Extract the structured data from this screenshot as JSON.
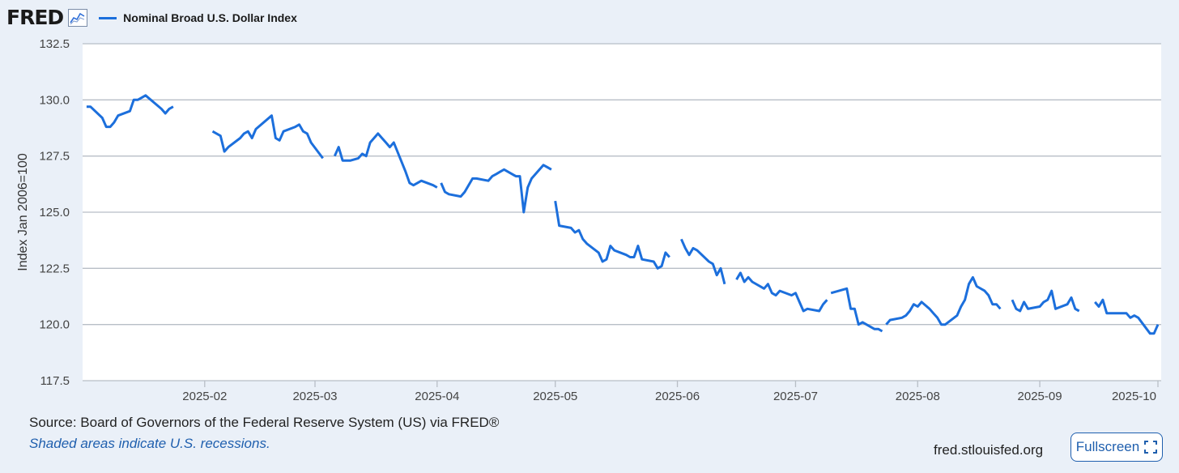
{
  "header": {
    "logo_text": "FRED",
    "logo_icon": "line-chart-icon"
  },
  "chart_data": {
    "type": "line",
    "ylabel": "Index Jan 2006=100",
    "ylim": [
      117.5,
      132.5
    ],
    "yticks": [
      "132.5",
      "130.0",
      "127.5",
      "125.0",
      "122.5",
      "120.0",
      "117.5"
    ],
    "ytick_values": [
      132.5,
      130.0,
      127.5,
      125.0,
      122.5,
      120.0,
      117.5
    ],
    "xlim": [
      "2025-01-01",
      "2025-10-01"
    ],
    "xticks": [
      "2025-02",
      "2025-03",
      "2025-04",
      "2025-05",
      "2025-06",
      "2025-07",
      "2025-08",
      "2025-09",
      "2025-10"
    ],
    "xtick_dates": [
      "2025-02-01",
      "2025-03-01",
      "2025-04-01",
      "2025-05-01",
      "2025-06-01",
      "2025-07-01",
      "2025-08-01",
      "2025-09-01",
      "2025-10-01"
    ],
    "grid": "horizontal",
    "line_color": "#1c6fdc",
    "series": [
      {
        "name": "Nominal Broad U.S. Dollar Index",
        "segments": [
          [
            [
              "2025-01-02",
              129.7
            ],
            [
              "2025-01-03",
              129.7
            ],
            [
              "2025-01-06",
              129.2
            ],
            [
              "2025-01-07",
              128.8
            ],
            [
              "2025-01-08",
              128.8
            ],
            [
              "2025-01-09",
              129.0
            ],
            [
              "2025-01-10",
              129.3
            ],
            [
              "2025-01-13",
              129.5
            ],
            [
              "2025-01-14",
              130.0
            ],
            [
              "2025-01-15",
              130.0
            ],
            [
              "2025-01-16",
              130.1
            ],
            [
              "2025-01-17",
              130.2
            ],
            [
              "2025-01-21",
              129.6
            ],
            [
              "2025-01-22",
              129.4
            ],
            [
              "2025-01-23",
              129.6
            ],
            [
              "2025-01-24",
              129.7
            ]
          ],
          [
            [
              "2025-02-03",
              128.6
            ],
            [
              "2025-02-04",
              128.5
            ],
            [
              "2025-02-05",
              128.4
            ],
            [
              "2025-02-06",
              127.7
            ],
            [
              "2025-02-07",
              127.9
            ],
            [
              "2025-02-10",
              128.3
            ],
            [
              "2025-02-11",
              128.5
            ],
            [
              "2025-02-12",
              128.6
            ],
            [
              "2025-02-13",
              128.3
            ],
            [
              "2025-02-14",
              128.7
            ],
            [
              "2025-02-18",
              129.3
            ],
            [
              "2025-02-19",
              128.3
            ],
            [
              "2025-02-20",
              128.2
            ],
            [
              "2025-02-21",
              128.6
            ],
            [
              "2025-02-24",
              128.8
            ],
            [
              "2025-02-25",
              128.9
            ],
            [
              "2025-02-26",
              128.6
            ],
            [
              "2025-02-27",
              128.5
            ],
            [
              "2025-02-28",
              128.1
            ],
            [
              "2025-03-03",
              127.4
            ]
          ],
          [
            [
              "2025-03-06",
              127.5
            ],
            [
              "2025-03-07",
              127.9
            ],
            [
              "2025-03-08",
              127.3
            ],
            [
              "2025-03-10",
              127.3
            ],
            [
              "2025-03-12",
              127.4
            ],
            [
              "2025-03-13",
              127.6
            ],
            [
              "2025-03-14",
              127.5
            ],
            [
              "2025-03-15",
              128.1
            ],
            [
              "2025-03-17",
              128.5
            ],
            [
              "2025-03-18",
              128.3
            ],
            [
              "2025-03-19",
              128.1
            ],
            [
              "2025-03-20",
              127.9
            ],
            [
              "2025-03-21",
              128.1
            ],
            [
              "2025-03-24",
              126.8
            ],
            [
              "2025-03-25",
              126.3
            ],
            [
              "2025-03-26",
              126.2
            ],
            [
              "2025-03-27",
              126.3
            ],
            [
              "2025-03-28",
              126.4
            ],
            [
              "2025-03-31",
              126.2
            ],
            [
              "2025-04-01",
              126.1
            ]
          ],
          [
            [
              "2025-04-02",
              126.3
            ],
            [
              "2025-04-03",
              125.9
            ],
            [
              "2025-04-04",
              125.8
            ],
            [
              "2025-04-07",
              125.7
            ],
            [
              "2025-04-08",
              125.9
            ],
            [
              "2025-04-09",
              126.2
            ],
            [
              "2025-04-10",
              126.5
            ],
            [
              "2025-04-11",
              126.5
            ],
            [
              "2025-04-14",
              126.4
            ],
            [
              "2025-04-15",
              126.6
            ],
            [
              "2025-04-16",
              126.7
            ],
            [
              "2025-04-17",
              126.8
            ],
            [
              "2025-04-18",
              126.9
            ],
            [
              "2025-04-21",
              126.6
            ],
            [
              "2025-04-22",
              126.6
            ],
            [
              "2025-04-23",
              125.0
            ],
            [
              "2025-04-24",
              126.1
            ],
            [
              "2025-04-25",
              126.5
            ],
            [
              "2025-04-28",
              127.1
            ],
            [
              "2025-04-29",
              127.0
            ],
            [
              "2025-04-30",
              126.9
            ]
          ],
          [
            [
              "2025-05-01",
              125.5
            ],
            [
              "2025-05-02",
              124.4
            ],
            [
              "2025-05-05",
              124.3
            ],
            [
              "2025-05-06",
              124.1
            ],
            [
              "2025-05-07",
              124.2
            ],
            [
              "2025-05-08",
              123.8
            ],
            [
              "2025-05-09",
              123.6
            ],
            [
              "2025-05-12",
              123.2
            ],
            [
              "2025-05-13",
              122.8
            ],
            [
              "2025-05-14",
              122.9
            ],
            [
              "2025-05-15",
              123.5
            ],
            [
              "2025-05-16",
              123.3
            ],
            [
              "2025-05-19",
              123.1
            ],
            [
              "2025-05-20",
              123.0
            ],
            [
              "2025-05-21",
              123.0
            ],
            [
              "2025-05-22",
              123.5
            ],
            [
              "2025-05-23",
              122.9
            ],
            [
              "2025-05-26",
              122.8
            ],
            [
              "2025-05-27",
              122.5
            ],
            [
              "2025-05-28",
              122.6
            ],
            [
              "2025-05-29",
              123.2
            ],
            [
              "2025-05-30",
              123.0
            ]
          ],
          [
            [
              "2025-06-02",
              123.8
            ],
            [
              "2025-06-03",
              123.4
            ],
            [
              "2025-06-04",
              123.1
            ],
            [
              "2025-06-05",
              123.4
            ],
            [
              "2025-06-06",
              123.3
            ],
            [
              "2025-06-09",
              122.8
            ],
            [
              "2025-06-10",
              122.7
            ],
            [
              "2025-06-11",
              122.2
            ],
            [
              "2025-06-12",
              122.5
            ],
            [
              "2025-06-13",
              121.8
            ]
          ],
          [
            [
              "2025-06-16",
              122.0
            ],
            [
              "2025-06-17",
              122.3
            ],
            [
              "2025-06-18",
              121.9
            ],
            [
              "2025-06-19",
              122.1
            ],
            [
              "2025-06-20",
              121.9
            ],
            [
              "2025-06-23",
              121.6
            ],
            [
              "2025-06-24",
              121.8
            ],
            [
              "2025-06-25",
              121.4
            ],
            [
              "2025-06-26",
              121.3
            ],
            [
              "2025-06-27",
              121.5
            ],
            [
              "2025-06-30",
              121.3
            ],
            [
              "2025-07-01",
              121.4
            ],
            [
              "2025-07-02",
              121.0
            ],
            [
              "2025-07-03",
              120.6
            ],
            [
              "2025-07-04",
              120.7
            ],
            [
              "2025-07-07",
              120.6
            ],
            [
              "2025-07-08",
              120.9
            ],
            [
              "2025-07-09",
              121.1
            ]
          ],
          [
            [
              "2025-07-10",
              121.4
            ],
            [
              "2025-07-14",
              121.6
            ],
            [
              "2025-07-15",
              120.7
            ],
            [
              "2025-07-16",
              120.7
            ],
            [
              "2025-07-17",
              120.0
            ],
            [
              "2025-07-18",
              120.1
            ],
            [
              "2025-07-21",
              119.8
            ],
            [
              "2025-07-22",
              119.8
            ],
            [
              "2025-07-23",
              119.7
            ]
          ],
          [
            [
              "2025-07-24",
              120.0
            ],
            [
              "2025-07-25",
              120.2
            ],
            [
              "2025-07-28",
              120.3
            ],
            [
              "2025-07-29",
              120.4
            ],
            [
              "2025-07-30",
              120.6
            ],
            [
              "2025-07-31",
              120.9
            ],
            [
              "2025-08-01",
              120.8
            ],
            [
              "2025-08-02",
              121.0
            ],
            [
              "2025-08-04",
              120.7
            ],
            [
              "2025-08-05",
              120.5
            ],
            [
              "2025-08-06",
              120.3
            ],
            [
              "2025-08-07",
              120.0
            ],
            [
              "2025-08-08",
              120.0
            ],
            [
              "2025-08-11",
              120.4
            ],
            [
              "2025-08-12",
              120.8
            ],
            [
              "2025-08-13",
              121.1
            ],
            [
              "2025-08-14",
              121.8
            ],
            [
              "2025-08-15",
              122.1
            ],
            [
              "2025-08-16",
              121.7
            ],
            [
              "2025-08-18",
              121.5
            ],
            [
              "2025-08-19",
              121.3
            ],
            [
              "2025-08-20",
              120.9
            ],
            [
              "2025-08-21",
              120.9
            ],
            [
              "2025-08-22",
              120.7
            ]
          ],
          [
            [
              "2025-08-25",
              121.1
            ],
            [
              "2025-08-26",
              120.7
            ],
            [
              "2025-08-27",
              120.6
            ],
            [
              "2025-08-28",
              121.0
            ],
            [
              "2025-08-29",
              120.7
            ],
            [
              "2025-09-01",
              120.8
            ],
            [
              "2025-09-02",
              121.0
            ],
            [
              "2025-09-03",
              121.1
            ],
            [
              "2025-09-04",
              121.5
            ],
            [
              "2025-09-05",
              120.7
            ],
            [
              "2025-09-08",
              120.9
            ],
            [
              "2025-09-09",
              121.2
            ],
            [
              "2025-09-10",
              120.7
            ],
            [
              "2025-09-11",
              120.6
            ]
          ],
          [
            [
              "2025-09-15",
              121.0
            ],
            [
              "2025-09-16",
              120.8
            ],
            [
              "2025-09-17",
              121.1
            ],
            [
              "2025-09-18",
              120.5
            ],
            [
              "2025-09-19",
              120.5
            ],
            [
              "2025-09-22",
              120.5
            ],
            [
              "2025-09-23",
              120.5
            ],
            [
              "2025-09-24",
              120.3
            ],
            [
              "2025-09-25",
              120.4
            ],
            [
              "2025-09-26",
              120.3
            ],
            [
              "2025-09-29",
              119.6
            ],
            [
              "2025-09-30",
              119.6
            ],
            [
              "2025-10-01",
              120.0
            ]
          ]
        ]
      }
    ]
  },
  "footer": {
    "source": "Source: Board of Governors of the Federal Reserve System (US) via FRED®",
    "recession_note": "Shaded areas indicate U.S. recessions.",
    "site": "fred.stlouisfed.org",
    "fullscreen_label": "Fullscreen"
  }
}
